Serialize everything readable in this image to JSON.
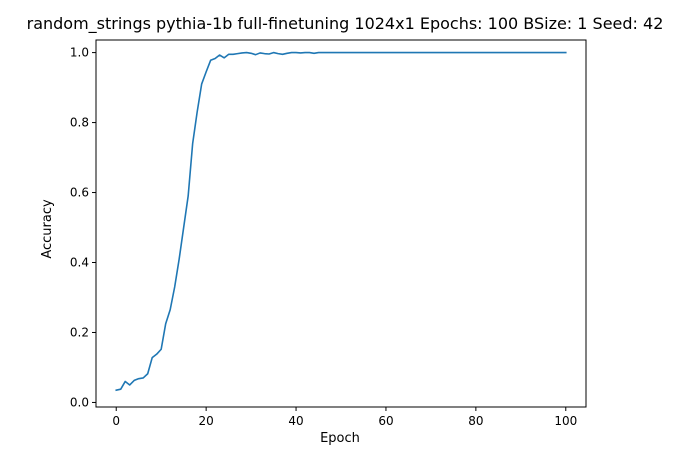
{
  "chart_data": {
    "type": "line",
    "title": "random_strings pythia-1b full-finetuning 1024x1 Epochs: 100 BSize: 1 Seed: 42",
    "xlabel": "Epoch",
    "ylabel": "Accuracy",
    "xlim": [
      -4.5,
      104.5
    ],
    "ylim": [
      -0.013,
      1.036
    ],
    "xticks": [
      "0",
      "20",
      "40",
      "60",
      "80",
      "100"
    ],
    "yticks": [
      "0.0",
      "0.2",
      "0.4",
      "0.6",
      "0.8",
      "1.0"
    ],
    "grid": false,
    "series": [
      {
        "color": "#1f77b4",
        "x": [
          0,
          1,
          2,
          3,
          4,
          5,
          6,
          7,
          8,
          9,
          10,
          11,
          12,
          13,
          14,
          15,
          16,
          17,
          18,
          19,
          20,
          21,
          22,
          23,
          24,
          25,
          26,
          27,
          28,
          29,
          30,
          31,
          32,
          33,
          34,
          35,
          36,
          37,
          38,
          39,
          40,
          41,
          42,
          43,
          44,
          45,
          46,
          47,
          48,
          49,
          50,
          51,
          52,
          53,
          54,
          55,
          56,
          57,
          58,
          59,
          60,
          61,
          62,
          63,
          64,
          65,
          66,
          67,
          68,
          69,
          70,
          71,
          72,
          73,
          74,
          75,
          76,
          77,
          78,
          79,
          80,
          81,
          82,
          83,
          84,
          85,
          86,
          87,
          88,
          89,
          90,
          91,
          92,
          93,
          94,
          95,
          96,
          97,
          98,
          99,
          100
        ],
        "y": [
          0.035,
          0.038,
          0.06,
          0.05,
          0.063,
          0.068,
          0.07,
          0.082,
          0.128,
          0.138,
          0.152,
          0.225,
          0.265,
          0.33,
          0.41,
          0.5,
          0.59,
          0.74,
          0.83,
          0.91,
          0.945,
          0.978,
          0.983,
          0.993,
          0.985,
          0.995,
          0.995,
          0.997,
          0.999,
          1.0,
          0.998,
          0.994,
          0.999,
          0.997,
          0.996,
          1.0,
          0.997,
          0.995,
          0.998,
          1.0,
          1.0,
          0.999,
          1.0,
          1.0,
          0.998,
          1.0,
          1.0,
          1.0,
          1.0,
          1.0,
          1.0,
          1.0,
          1.0,
          1.0,
          1.0,
          1.0,
          1.0,
          1.0,
          1.0,
          1.0,
          1.0,
          1.0,
          1.0,
          1.0,
          1.0,
          1.0,
          1.0,
          1.0,
          1.0,
          1.0,
          1.0,
          1.0,
          1.0,
          1.0,
          1.0,
          1.0,
          1.0,
          1.0,
          1.0,
          1.0,
          1.0,
          1.0,
          1.0,
          1.0,
          1.0,
          1.0,
          1.0,
          1.0,
          1.0,
          1.0,
          1.0,
          1.0,
          1.0,
          1.0,
          1.0,
          1.0,
          1.0,
          1.0,
          1.0,
          1.0,
          1.0
        ]
      }
    ]
  }
}
